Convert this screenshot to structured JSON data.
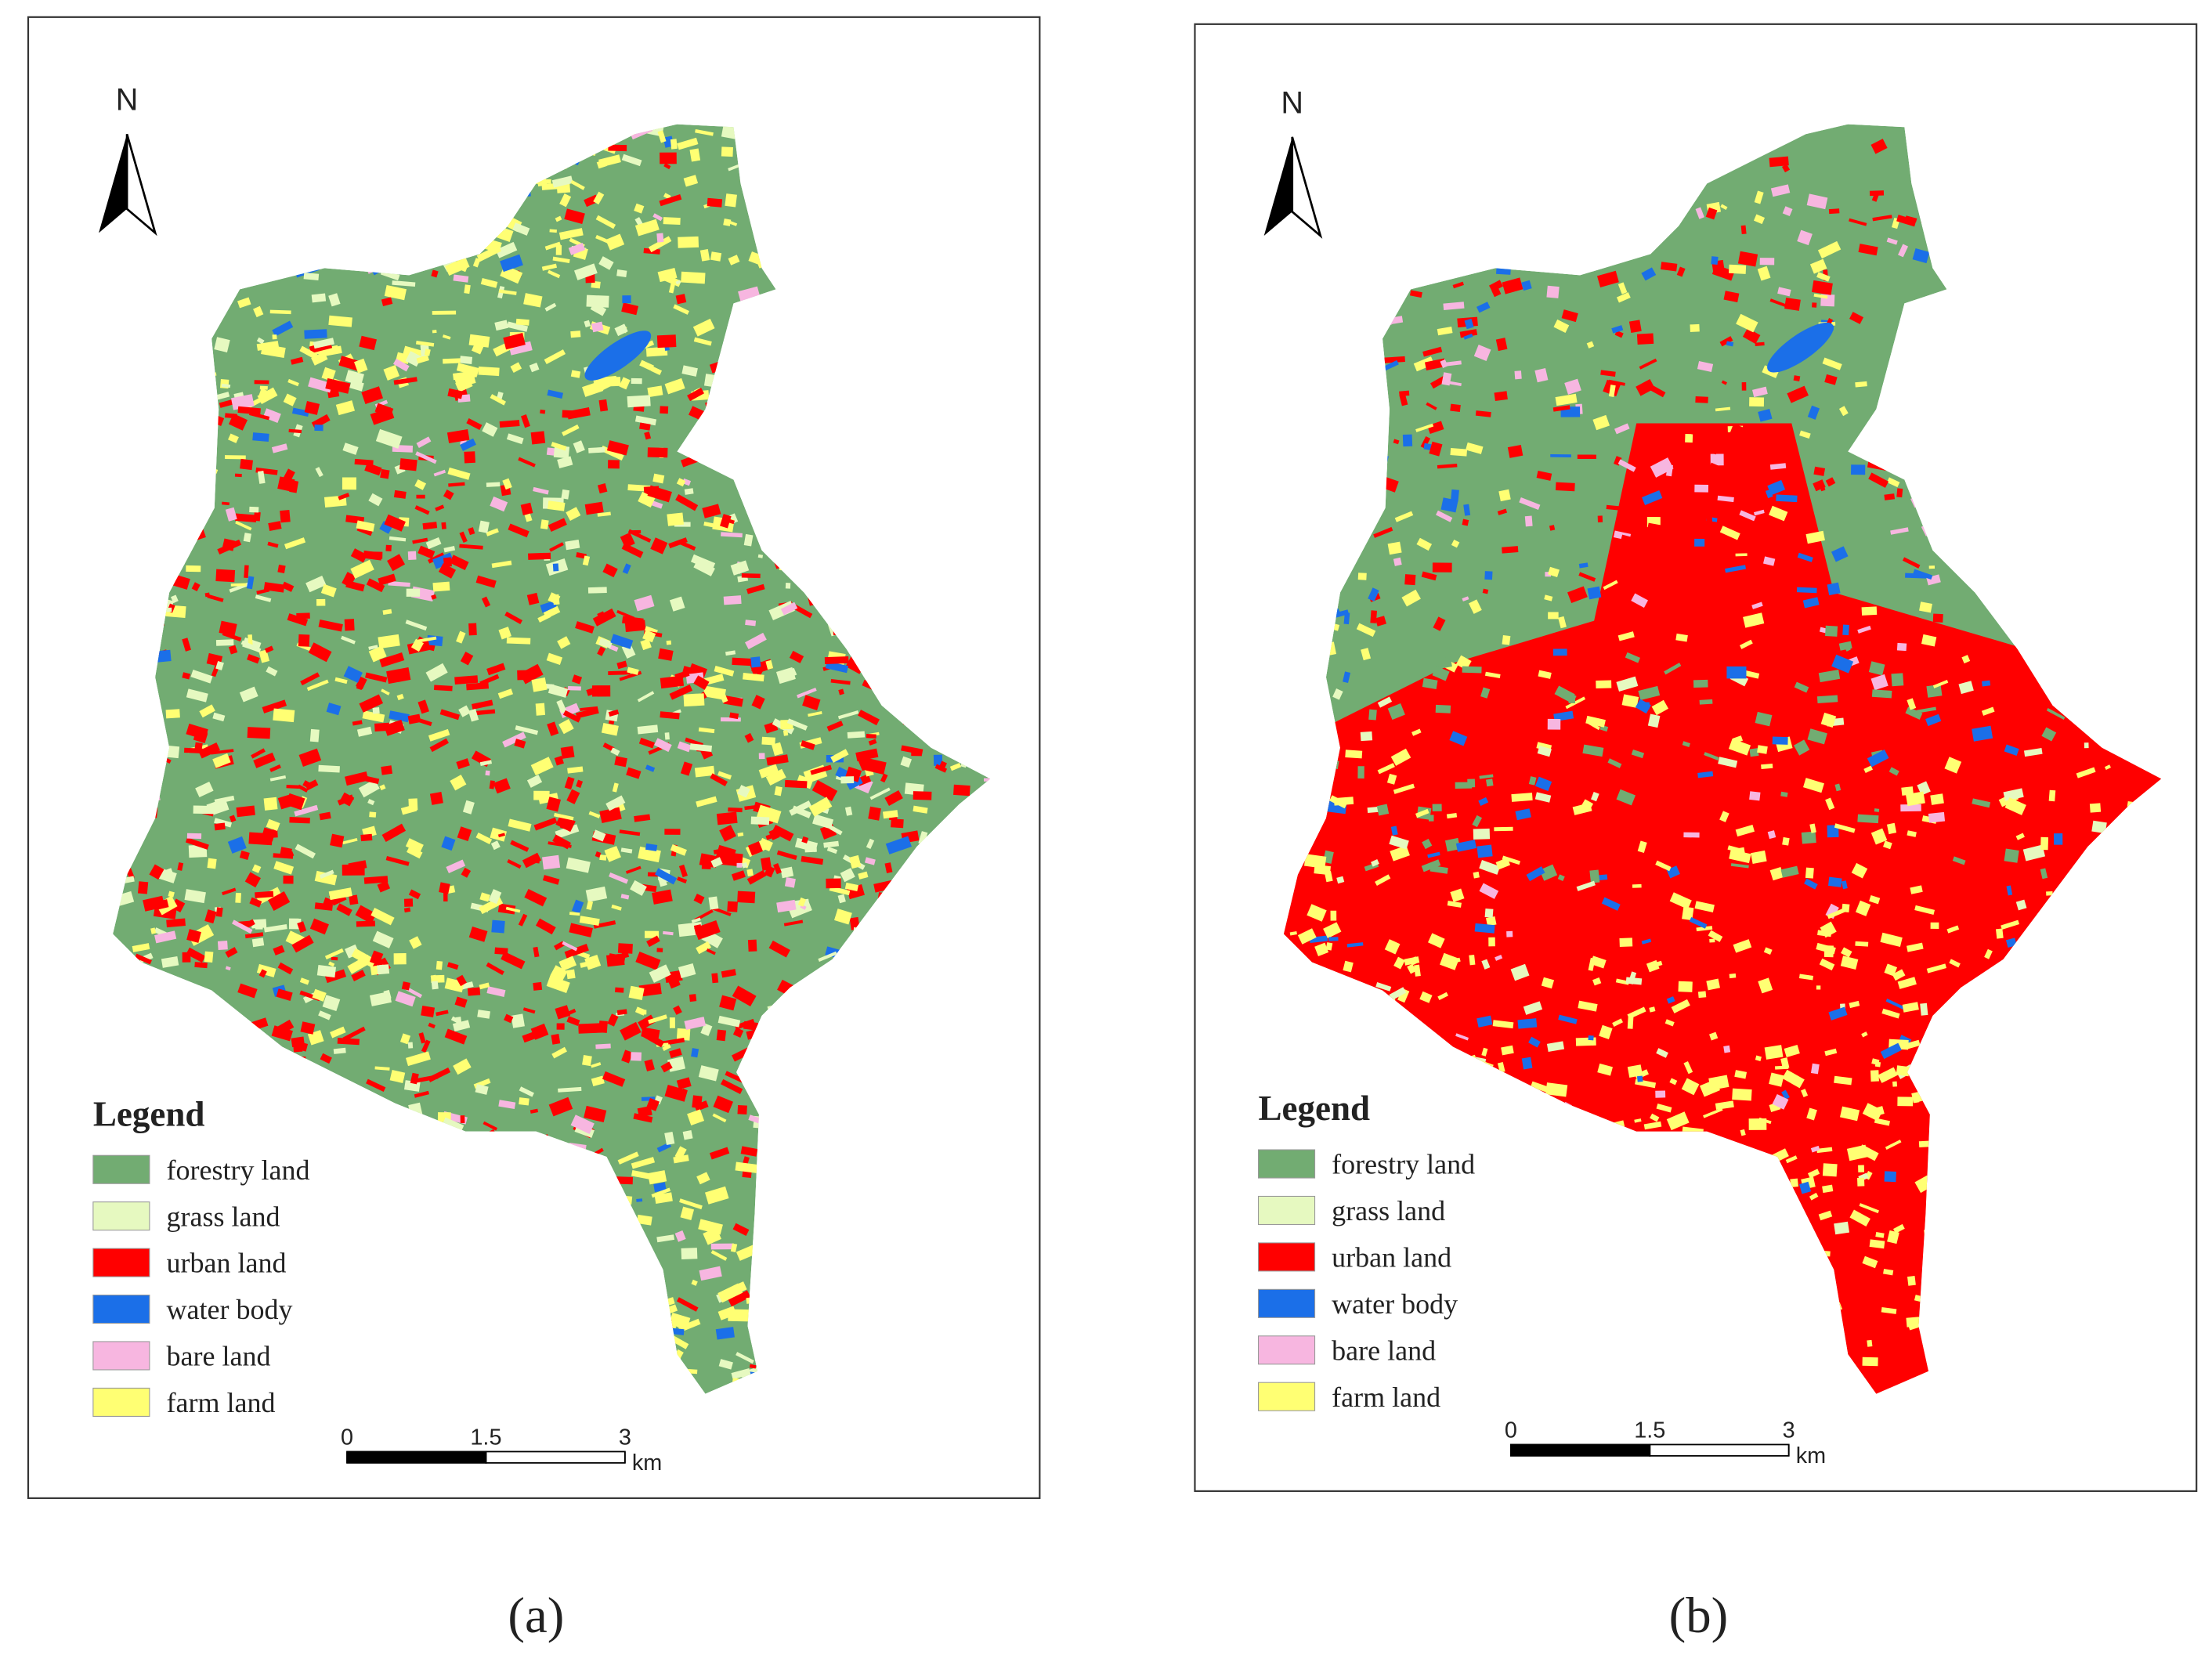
{
  "panels": [
    {
      "caption": "(a)",
      "north": "N",
      "legend_title": "Legend",
      "legend": [
        {
          "label": "forestry land",
          "color": "#72ac72"
        },
        {
          "label": "grass land",
          "color": "#e6f9c0"
        },
        {
          "label": "urban land",
          "color": "#ff0000"
        },
        {
          "label": "water body",
          "color": "#1b6fe8"
        },
        {
          "label": "bare land",
          "color": "#f7b6e0"
        },
        {
          "label": "farm land",
          "color": "#ffff73"
        }
      ],
      "scale": {
        "ticks": [
          0,
          1.5,
          3
        ],
        "unit": "km"
      }
    },
    {
      "caption": "(b)",
      "north": "N",
      "legend_title": "Legend",
      "legend": [
        {
          "label": "forestry land",
          "color": "#72ac72"
        },
        {
          "label": "grass land",
          "color": "#e6f9c0"
        },
        {
          "label": "urban land",
          "color": "#ff0000"
        },
        {
          "label": "water body",
          "color": "#1b6fe8"
        },
        {
          "label": "bare land",
          "color": "#f7b6e0"
        },
        {
          "label": "farm land",
          "color": "#ffff73"
        }
      ],
      "scale": {
        "ticks": [
          0,
          1.5,
          3
        ],
        "unit": "km"
      }
    }
  ]
}
